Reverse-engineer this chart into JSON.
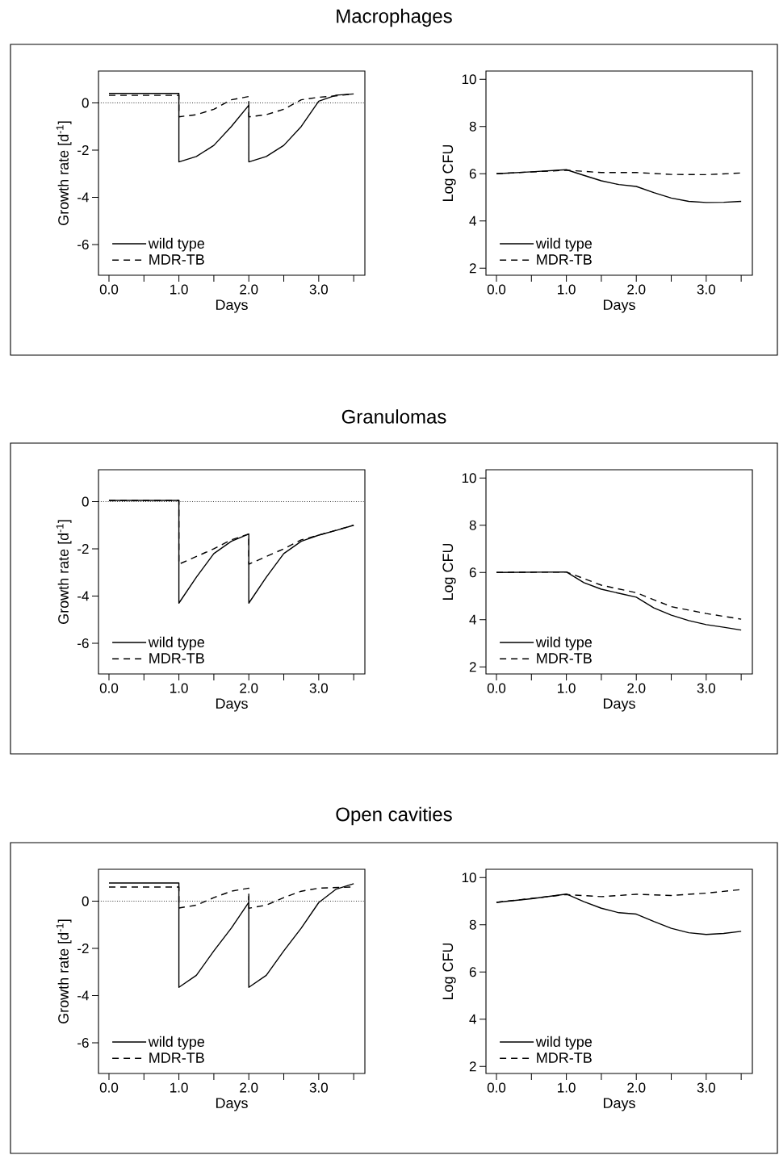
{
  "chart_data": [
    {
      "type": "line",
      "title": "Macrophages",
      "xlabel": "Days",
      "ylabel": "Growth rate [d$^{-1}$]",
      "xlim": [
        -0.15,
        3.66
      ],
      "ylim": [
        -7.3,
        1.35
      ],
      "legend": "bottom left",
      "xticks": [
        {
          "value": 0,
          "label": "0.0"
        },
        {
          "value": 0.5,
          "label": null
        },
        {
          "value": 1,
          "label": "1.0"
        },
        {
          "value": 1.5,
          "label": null
        },
        {
          "value": 2,
          "label": "2.0"
        },
        {
          "value": 2.5,
          "label": null
        },
        {
          "value": 3,
          "label": "3.0"
        },
        {
          "value": 3.5,
          "label": null
        }
      ],
      "yticks": [
        -6,
        -4,
        -2,
        0
      ],
      "ref_lines": [
        {
          "axis": "y",
          "value": 0,
          "line_style": "dotted"
        }
      ],
      "series": [
        {
          "name": "wild type",
          "color": "#000000",
          "line_style": "solid",
          "x": [
            0,
            1,
            1,
            1.25,
            1.5,
            1.75,
            2,
            2,
            2.25,
            2.5,
            2.75,
            3,
            3.25,
            3.5
          ],
          "values": [
            0.4,
            0.4,
            -2.5,
            -2.27,
            -1.8,
            -1.0,
            -0.1,
            -2.5,
            -2.27,
            -1.8,
            -1.0,
            0.07,
            0.33,
            0.38
          ]
        },
        {
          "name": "MDR-TB",
          "color": "#000000",
          "line_style": "dashed",
          "x": [
            0,
            1,
            1,
            1.25,
            1.5,
            1.75,
            2,
            2,
            2.25,
            2.5,
            2.75,
            3,
            3.25,
            3.5
          ],
          "values": [
            0.32,
            0.32,
            -0.59,
            -0.5,
            -0.27,
            0.13,
            0.27,
            -0.59,
            -0.5,
            -0.27,
            0.13,
            0.24,
            0.3,
            0.38
          ]
        }
      ]
    },
    {
      "type": "line",
      "xlabel": "Days",
      "ylabel": "Log CFU",
      "xlim": [
        -0.15,
        3.66
      ],
      "ylim": [
        1.7,
        10.35
      ],
      "legend": "bottom left",
      "xticks": [
        {
          "value": 0,
          "label": "0.0"
        },
        {
          "value": 0.5,
          "label": null
        },
        {
          "value": 1,
          "label": "1.0"
        },
        {
          "value": 1.5,
          "label": null
        },
        {
          "value": 2,
          "label": "2.0"
        },
        {
          "value": 2.5,
          "label": null
        },
        {
          "value": 3,
          "label": "3.0"
        },
        {
          "value": 3.5,
          "label": null
        }
      ],
      "yticks": [
        2,
        4,
        6,
        8,
        10
      ],
      "series": [
        {
          "name": "wild type",
          "color": "#000000",
          "line_style": "solid",
          "x": [
            0,
            0.5,
            1,
            1.25,
            1.5,
            1.75,
            2,
            2.25,
            2.5,
            2.75,
            3,
            3.25,
            3.5
          ],
          "values": [
            6.0,
            6.08,
            6.17,
            5.93,
            5.7,
            5.54,
            5.46,
            5.2,
            4.97,
            4.83,
            4.78,
            4.79,
            4.83
          ]
        },
        {
          "name": "MDR-TB",
          "color": "#000000",
          "line_style": "dashed",
          "x": [
            0,
            1,
            1.5,
            2,
            2.5,
            3,
            3.5
          ],
          "values": [
            6.0,
            6.15,
            6.05,
            6.05,
            5.97,
            5.96,
            6.03
          ]
        }
      ]
    },
    {
      "type": "line",
      "title": "Granulomas",
      "xlabel": "Days",
      "ylabel": "Growth rate [d$^{-1}$]",
      "xlim": [
        -0.15,
        3.66
      ],
      "ylim": [
        -7.3,
        1.35
      ],
      "legend": "bottom left",
      "xticks": [
        {
          "value": 0,
          "label": "0.0"
        },
        {
          "value": 0.5,
          "label": null
        },
        {
          "value": 1,
          "label": "1.0"
        },
        {
          "value": 1.5,
          "label": null
        },
        {
          "value": 2,
          "label": "2.0"
        },
        {
          "value": 2.5,
          "label": null
        },
        {
          "value": 3,
          "label": "3.0"
        },
        {
          "value": 3.5,
          "label": null
        }
      ],
      "yticks": [
        -6,
        -4,
        -2,
        0
      ],
      "ref_lines": [
        {
          "axis": "y",
          "value": 0,
          "line_style": "dotted"
        }
      ],
      "series": [
        {
          "name": "wild type",
          "color": "#000000",
          "line_style": "solid",
          "x": [
            0,
            1,
            1,
            1.25,
            1.5,
            1.75,
            2,
            2,
            2.25,
            2.5,
            2.75,
            3,
            3.25,
            3.5
          ],
          "values": [
            0.05,
            0.05,
            -4.3,
            -3.2,
            -2.2,
            -1.68,
            -1.37,
            -4.3,
            -3.2,
            -2.2,
            -1.68,
            -1.42,
            -1.22,
            -1.0
          ]
        },
        {
          "name": "MDR-TB",
          "color": "#000000",
          "line_style": "dashed",
          "x": [
            0,
            1,
            1,
            1.5,
            1.75,
            2,
            2,
            2.5,
            2.75,
            3,
            3.5
          ],
          "values": [
            0.05,
            0.05,
            -2.65,
            -2.0,
            -1.62,
            -1.37,
            -2.65,
            -2.0,
            -1.62,
            -1.42,
            -1.0
          ]
        }
      ]
    },
    {
      "type": "line",
      "xlabel": "Days",
      "ylabel": "Log CFU",
      "xlim": [
        -0.15,
        3.66
      ],
      "ylim": [
        1.7,
        10.35
      ],
      "legend": "bottom left",
      "xticks": [
        {
          "value": 0,
          "label": "0.0"
        },
        {
          "value": 0.5,
          "label": null
        },
        {
          "value": 1,
          "label": "1.0"
        },
        {
          "value": 1.5,
          "label": null
        },
        {
          "value": 2,
          "label": "2.0"
        },
        {
          "value": 2.5,
          "label": null
        },
        {
          "value": 3,
          "label": "3.0"
        },
        {
          "value": 3.5,
          "label": null
        }
      ],
      "yticks": [
        2,
        4,
        6,
        8,
        10
      ],
      "series": [
        {
          "name": "wild type",
          "color": "#000000",
          "line_style": "solid",
          "x": [
            0,
            1,
            1.25,
            1.5,
            1.75,
            2,
            2.25,
            2.5,
            2.75,
            3,
            3.25,
            3.5
          ],
          "values": [
            6.0,
            6.02,
            5.57,
            5.29,
            5.12,
            4.95,
            4.5,
            4.19,
            3.96,
            3.79,
            3.68,
            3.56
          ]
        },
        {
          "name": "MDR-TB",
          "color": "#000000",
          "line_style": "dashed",
          "x": [
            0,
            1,
            1.5,
            2,
            2.5,
            3,
            3.5
          ],
          "values": [
            6.0,
            6.02,
            5.46,
            5.14,
            4.55,
            4.26,
            4.02
          ]
        }
      ]
    },
    {
      "type": "line",
      "title": "Open cavities",
      "xlabel": "Days",
      "ylabel": "Growth rate [d$^{-1}$]",
      "xlim": [
        -0.15,
        3.66
      ],
      "ylim": [
        -7.3,
        1.35
      ],
      "legend": "bottom left",
      "xticks": [
        {
          "value": 0,
          "label": "0.0"
        },
        {
          "value": 0.5,
          "label": null
        },
        {
          "value": 1,
          "label": "1.0"
        },
        {
          "value": 1.5,
          "label": null
        },
        {
          "value": 2,
          "label": "2.0"
        },
        {
          "value": 2.5,
          "label": null
        },
        {
          "value": 3,
          "label": "3.0"
        },
        {
          "value": 3.5,
          "label": null
        }
      ],
      "yticks": [
        -6,
        -4,
        -2,
        0
      ],
      "ref_lines": [
        {
          "axis": "y",
          "value": 0,
          "line_style": "dotted"
        }
      ],
      "series": [
        {
          "name": "wild type",
          "color": "#000000",
          "line_style": "solid",
          "x": [
            0,
            1,
            1,
            1.25,
            1.5,
            1.75,
            2,
            2,
            2,
            2.25,
            2.5,
            2.75,
            3,
            3.25,
            3.5
          ],
          "values": [
            0.77,
            0.77,
            -3.65,
            -3.14,
            -2.11,
            -1.14,
            -0.05,
            0.2,
            -3.65,
            -3.14,
            -2.11,
            -1.14,
            -0.06,
            0.51,
            0.74
          ]
        },
        {
          "name": "MDR-TB",
          "color": "#000000",
          "line_style": "dashed",
          "x": [
            0,
            1,
            1,
            1.25,
            1.5,
            1.75,
            2,
            2,
            2.25,
            2.5,
            2.75,
            3,
            3.5
          ],
          "values": [
            0.6,
            0.6,
            -0.29,
            -0.17,
            0.15,
            0.42,
            0.55,
            -0.3,
            -0.17,
            0.15,
            0.42,
            0.55,
            0.6
          ]
        }
      ]
    },
    {
      "type": "line",
      "xlabel": "Days",
      "ylabel": "Log CFU",
      "xlim": [
        -0.15,
        3.66
      ],
      "ylim": [
        1.7,
        10.35
      ],
      "legend": "bottom left",
      "xticks": [
        {
          "value": 0,
          "label": "0.0"
        },
        {
          "value": 0.5,
          "label": null
        },
        {
          "value": 1,
          "label": "1.0"
        },
        {
          "value": 1.5,
          "label": null
        },
        {
          "value": 2,
          "label": "2.0"
        },
        {
          "value": 2.5,
          "label": null
        },
        {
          "value": 3,
          "label": "3.0"
        },
        {
          "value": 3.5,
          "label": null
        }
      ],
      "yticks": [
        2,
        4,
        6,
        8,
        10
      ],
      "series": [
        {
          "name": "wild type",
          "color": "#000000",
          "line_style": "solid",
          "x": [
            0,
            0.5,
            1,
            1.25,
            1.5,
            1.75,
            2,
            2.25,
            2.5,
            2.75,
            3,
            3.25,
            3.5
          ],
          "values": [
            8.95,
            9.1,
            9.3,
            8.98,
            8.7,
            8.51,
            8.45,
            8.14,
            7.85,
            7.66,
            7.59,
            7.63,
            7.72
          ]
        },
        {
          "name": "MDR-TB",
          "color": "#000000",
          "line_style": "dashed",
          "x": [
            0,
            1,
            1.5,
            2,
            2.5,
            3,
            3.5
          ],
          "values": [
            8.95,
            9.28,
            9.19,
            9.29,
            9.24,
            9.34,
            9.49
          ]
        }
      ]
    }
  ]
}
